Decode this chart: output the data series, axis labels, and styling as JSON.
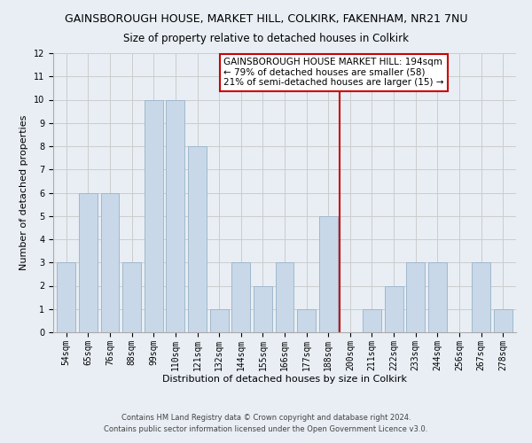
{
  "title": "GAINSBOROUGH HOUSE, MARKET HILL, COLKIRK, FAKENHAM, NR21 7NU",
  "subtitle": "Size of property relative to detached houses in Colkirk",
  "xlabel": "Distribution of detached houses by size in Colkirk",
  "ylabel": "Number of detached properties",
  "categories": [
    "54sqm",
    "65sqm",
    "76sqm",
    "88sqm",
    "99sqm",
    "110sqm",
    "121sqm",
    "132sqm",
    "144sqm",
    "155sqm",
    "166sqm",
    "177sqm",
    "188sqm",
    "200sqm",
    "211sqm",
    "222sqm",
    "233sqm",
    "244sqm",
    "256sqm",
    "267sqm",
    "278sqm"
  ],
  "values": [
    3,
    6,
    6,
    3,
    10,
    10,
    8,
    1,
    3,
    2,
    3,
    1,
    5,
    0,
    1,
    2,
    3,
    3,
    0,
    3,
    1
  ],
  "bar_color": "#c8d8e8",
  "bar_edgecolor": "#a0b8cc",
  "vline_color": "#cc0000",
  "annotation_title": "GAINSBOROUGH HOUSE MARKET HILL: 194sqm",
  "annotation_line1": "← 79% of detached houses are smaller (58)",
  "annotation_line2": "21% of semi-detached houses are larger (15) →",
  "annotation_box_color": "#ffffff",
  "annotation_box_edgecolor": "#cc0000",
  "ylim": [
    0,
    12
  ],
  "yticks": [
    0,
    1,
    2,
    3,
    4,
    5,
    6,
    7,
    8,
    9,
    10,
    11,
    12
  ],
  "grid_color": "#cccccc",
  "bg_color": "#e8eef4",
  "footer1": "Contains HM Land Registry data © Crown copyright and database right 2024.",
  "footer2": "Contains public sector information licensed under the Open Government Licence v3.0.",
  "title_fontsize": 9,
  "subtitle_fontsize": 8.5,
  "axis_label_fontsize": 8,
  "tick_fontsize": 7,
  "annotation_fontsize": 7.5,
  "footer_fontsize": 6
}
